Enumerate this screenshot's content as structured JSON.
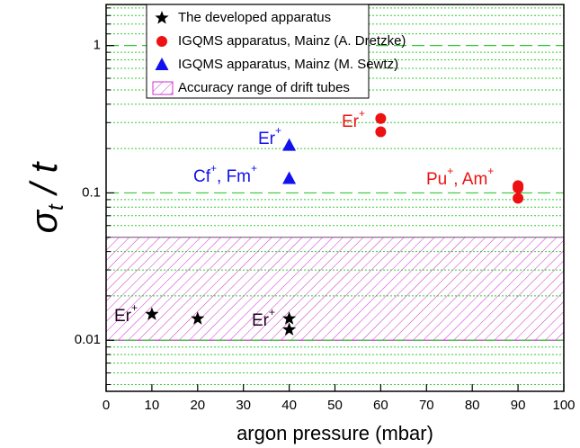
{
  "chart_data": {
    "type": "scatter",
    "xlabel": "argon pressure (mbar)",
    "ylabel_parts": [
      "σ",
      "t",
      " / t"
    ],
    "ylog": true,
    "xlim": [
      0,
      100
    ],
    "ylim": [
      0.0045,
      1.9
    ],
    "xticks": [
      0,
      10,
      20,
      30,
      40,
      50,
      60,
      70,
      80,
      90,
      100
    ],
    "yticks": [
      0.01,
      0.1,
      1
    ],
    "minor_yticks": [
      0.005,
      0.006,
      0.007,
      0.008,
      0.009,
      0.02,
      0.03,
      0.04,
      0.05,
      0.06,
      0.07,
      0.08,
      0.09,
      0.2,
      0.3,
      0.4,
      0.5,
      0.6,
      0.7,
      0.8,
      0.9,
      1.2,
      1.4,
      1.6,
      1.8
    ],
    "grid": true,
    "grid_color": "#33cc33",
    "series": [
      {
        "name": "The developed apparatus",
        "marker": "star",
        "color": "#000000",
        "x": [
          10,
          20,
          40,
          40
        ],
        "values": [
          0.015,
          0.014,
          0.014,
          0.0118
        ]
      },
      {
        "name": "IGQMS apparatus, Mainz (A. Dretzke)",
        "marker": "circle",
        "color": "#ee1111",
        "x": [
          60,
          60,
          90,
          90,
          90
        ],
        "values": [
          0.32,
          0.26,
          0.112,
          0.108,
          0.092
        ]
      },
      {
        "name": "IGQMS apparatus, Mainz (M. Sewtz)",
        "marker": "triangle",
        "color": "#1111ee",
        "x": [
          40,
          40
        ],
        "values": [
          0.21,
          0.125
        ]
      }
    ],
    "shaded_region": {
      "name": "Accuracy range of drift tubes",
      "xlim": [
        0,
        100
      ],
      "ylim": [
        0.01,
        0.05
      ],
      "color": "#cc33cc"
    },
    "annotations": [
      {
        "parts": [
          "Er",
          "+"
        ],
        "color": "#220022"
      },
      {
        "parts": [
          "Er",
          "+"
        ],
        "color": "#220022"
      },
      {
        "parts": [
          "Er",
          "+"
        ],
        "color": "#1111ee"
      },
      {
        "parts": [
          "Cf",
          "+",
          ", Fm",
          "+"
        ],
        "color": "#1111ee"
      },
      {
        "parts": [
          "Er",
          "+"
        ],
        "color": "#ee1111"
      },
      {
        "parts": [
          "Pu",
          "+",
          ", Am",
          "+"
        ],
        "color": "#ee1111"
      }
    ]
  }
}
